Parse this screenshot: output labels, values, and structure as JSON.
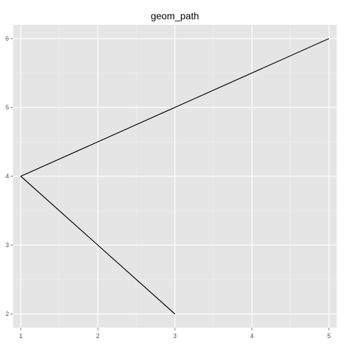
{
  "chart_data": {
    "type": "line",
    "title": "geom_path",
    "xlabel": "",
    "ylabel": "",
    "xlim": [
      0.9,
      5.1
    ],
    "ylim": [
      1.8,
      6.2
    ],
    "xticks": [
      1,
      2,
      3,
      4,
      5
    ],
    "yticks": [
      2,
      3,
      4,
      5,
      6
    ],
    "grid": true,
    "legend": "none",
    "series": [
      {
        "x": [
          3,
          1,
          5
        ],
        "y": [
          2,
          4,
          6
        ]
      }
    ],
    "colors": {
      "panel_background": "#e5e5e5",
      "grid_major": "#ffffff",
      "grid_minor": "#f2f2f2",
      "line": "#000000",
      "tick_text": "#4d4d4d",
      "tick_mark": "#7f7f7f"
    }
  }
}
